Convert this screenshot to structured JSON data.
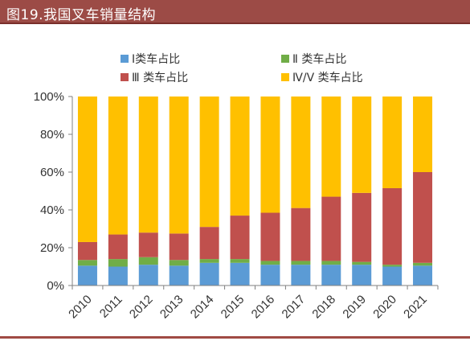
{
  "header": {
    "title": "图19.我国叉车销量结构"
  },
  "colors": {
    "header_bg": "#9c4b46",
    "class1": "#5b9bd5",
    "class2": "#70ad47",
    "class3": "#c0504d",
    "class45": "#ffc000"
  },
  "chart_data": {
    "type": "bar",
    "stacked": true,
    "categories": [
      "2010",
      "2011",
      "2012",
      "2013",
      "2014",
      "2015",
      "2016",
      "2017",
      "2018",
      "2019",
      "2020",
      "2021"
    ],
    "series": [
      {
        "name": "I类车占比",
        "color": "#5b9bd5",
        "values": [
          10.5,
          10,
          11,
          10.5,
          12,
          12,
          11,
          11,
          11,
          11,
          10,
          10.5
        ]
      },
      {
        "name": "Ⅱ 类车占比",
        "color": "#70ad47",
        "values": [
          3,
          4,
          4,
          3,
          2,
          2,
          2,
          2,
          2,
          1.5,
          1,
          1.5
        ]
      },
      {
        "name": "Ⅲ 类车占比",
        "color": "#c0504d",
        "values": [
          9.5,
          13,
          13,
          14,
          17,
          23,
          25.5,
          28,
          34,
          36.5,
          40.5,
          48
        ]
      },
      {
        "name": "Ⅳ/Ⅴ 类车占比",
        "color": "#ffc000",
        "values": [
          77,
          73,
          72,
          72.5,
          69,
          63,
          61.5,
          59,
          53,
          51,
          48.5,
          40
        ]
      }
    ],
    "y_tick_labels": [
      "0%",
      "20%",
      "40%",
      "60%",
      "80%",
      "100%"
    ],
    "ylim": [
      0,
      100
    ],
    "legend_position": "top",
    "grid": false
  }
}
